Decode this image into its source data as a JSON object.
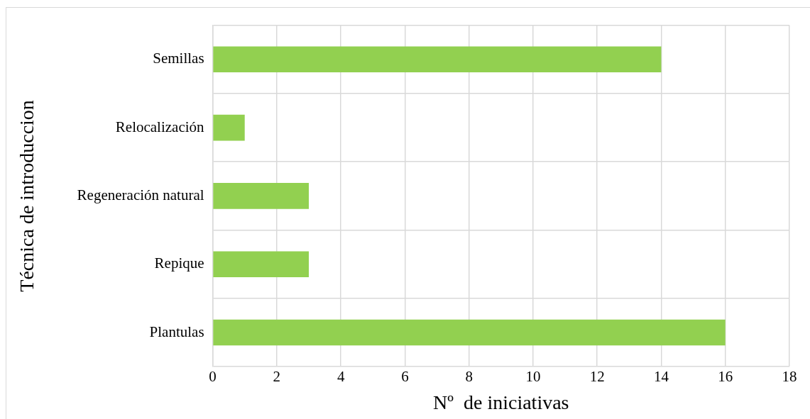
{
  "chart_data": {
    "type": "bar",
    "orientation": "horizontal",
    "categories": [
      "Semillas",
      "Relocalización",
      "Regeneración natural",
      "Repique",
      "Plantulas"
    ],
    "values": [
      14,
      1,
      3,
      3,
      16
    ],
    "color": "#92d050",
    "xlim": [
      0,
      18
    ],
    "xticks": [
      0,
      2,
      4,
      6,
      8,
      10,
      12,
      14,
      16,
      18
    ],
    "xlabel": "Nº  de iniciativas",
    "ylabel": "Técnica de introduccion",
    "grid": true,
    "legend": false
  }
}
